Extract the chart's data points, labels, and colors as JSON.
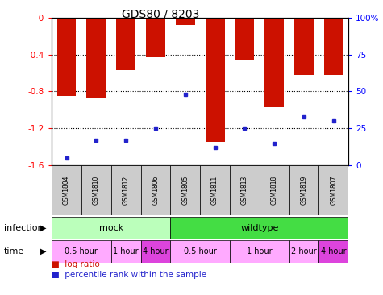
{
  "title": "GDS80 / 8203",
  "samples": [
    "GSM1804",
    "GSM1810",
    "GSM1812",
    "GSM1806",
    "GSM1805",
    "GSM1811",
    "GSM1813",
    "GSM1818",
    "GSM1819",
    "GSM1807"
  ],
  "log_ratios": [
    -0.85,
    -0.87,
    -0.57,
    -0.43,
    -0.08,
    -1.35,
    -0.46,
    -0.97,
    -0.62,
    -0.62
  ],
  "percentile_ranks": [
    5,
    17,
    17,
    25,
    48,
    12,
    25,
    15,
    33,
    30
  ],
  "ylim": [
    -1.6,
    0.0
  ],
  "yticks": [
    0.0,
    -0.4,
    -0.8,
    -1.2,
    -1.6
  ],
  "ytick_labels": [
    "-0",
    "-0.4",
    "-0.8",
    "-1.2",
    "-1.6"
  ],
  "right_yticks_pct": [
    100,
    75,
    50,
    25,
    0
  ],
  "right_ytick_labels": [
    "100%",
    "75",
    "50",
    "25",
    "0"
  ],
  "bar_color": "#cc1100",
  "dot_color": "#2222cc",
  "infection_row": [
    {
      "label": "mock",
      "start": 0,
      "end": 4,
      "color": "#bbffbb"
    },
    {
      "label": "wildtype",
      "start": 4,
      "end": 10,
      "color": "#44dd44"
    }
  ],
  "time_row": [
    {
      "label": "0.5 hour",
      "start": 0,
      "end": 2,
      "color": "#ffaaff"
    },
    {
      "label": "1 hour",
      "start": 2,
      "end": 3,
      "color": "#ffaaff"
    },
    {
      "label": "4 hour",
      "start": 3,
      "end": 4,
      "color": "#dd44dd"
    },
    {
      "label": "0.5 hour",
      "start": 4,
      "end": 6,
      "color": "#ffaaff"
    },
    {
      "label": "1 hour",
      "start": 6,
      "end": 8,
      "color": "#ffaaff"
    },
    {
      "label": "2 hour",
      "start": 8,
      "end": 9,
      "color": "#ffaaff"
    },
    {
      "label": "4 hour",
      "start": 9,
      "end": 10,
      "color": "#dd44dd"
    }
  ]
}
